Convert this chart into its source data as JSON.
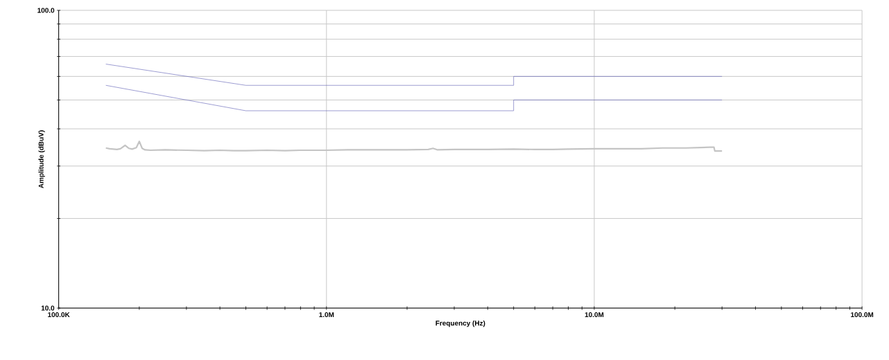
{
  "chart_data": {
    "type": "line",
    "xlabel": "Frequency (Hz)",
    "ylabel": "Amplitude (dBuV)",
    "log": "xy",
    "grid": true,
    "marker": "none",
    "line_style": "solid",
    "xlim": [
      100000,
      100000000
    ],
    "ylim": [
      10,
      100
    ],
    "xticks": [
      {
        "value": 100000,
        "label": "100.0K"
      },
      {
        "value": 1000000,
        "label": "1.0M"
      },
      {
        "value": 10000000,
        "label": "10.0M"
      },
      {
        "value": 100000000,
        "label": "100.0M"
      }
    ],
    "yticks": [
      {
        "value": 10,
        "label": "10.0"
      },
      {
        "value": 20,
        "label": null
      },
      {
        "value": 30,
        "label": null
      },
      {
        "value": 40,
        "label": null
      },
      {
        "value": 50,
        "label": null
      },
      {
        "value": 60,
        "label": null
      },
      {
        "value": 70,
        "label": null
      },
      {
        "value": 80,
        "label": null
      },
      {
        "value": 90,
        "label": null
      },
      {
        "value": 100,
        "label": "100.0"
      }
    ],
    "series": [
      {
        "color": "#5a5ab4",
        "x": [
          150000,
          500000,
          5000000,
          5000000,
          30000000
        ],
        "values": [
          66,
          56,
          56,
          60,
          60
        ]
      },
      {
        "color": "#5a5ab4",
        "x": [
          150000,
          500000,
          5000000,
          5000000,
          30000000
        ],
        "values": [
          56,
          46,
          46,
          50,
          50
        ]
      },
      {
        "color": "#c4c4c4",
        "x": [
          150000,
          155000,
          160000,
          165000,
          170000,
          177000,
          183000,
          188000,
          195000,
          200000,
          205000,
          210000,
          220000,
          250000,
          300000,
          350000,
          400000,
          450000,
          500000,
          600000,
          700000,
          800000,
          1000000,
          1200000,
          1500000,
          2000000,
          2400000,
          2500000,
          2600000,
          3000000,
          4000000,
          5000000,
          6000000,
          7000000,
          8000000,
          10000000,
          12000000,
          15000000,
          18000000,
          20000000,
          22000000,
          25000000,
          27000000,
          28000000,
          28200000,
          30000000
        ],
        "values": [
          34.5,
          34.3,
          34.2,
          34.1,
          34.3,
          35.2,
          34.4,
          34.2,
          34.6,
          36.3,
          34.4,
          34.0,
          33.9,
          34.0,
          33.9,
          33.8,
          33.9,
          33.8,
          33.8,
          33.9,
          33.8,
          33.9,
          33.9,
          34.0,
          34.0,
          34.0,
          34.1,
          34.4,
          34.0,
          34.1,
          34.1,
          34.2,
          34.1,
          34.1,
          34.2,
          34.3,
          34.3,
          34.3,
          34.5,
          34.5,
          34.5,
          34.6,
          34.7,
          34.7,
          33.7,
          33.7
        ]
      }
    ]
  }
}
